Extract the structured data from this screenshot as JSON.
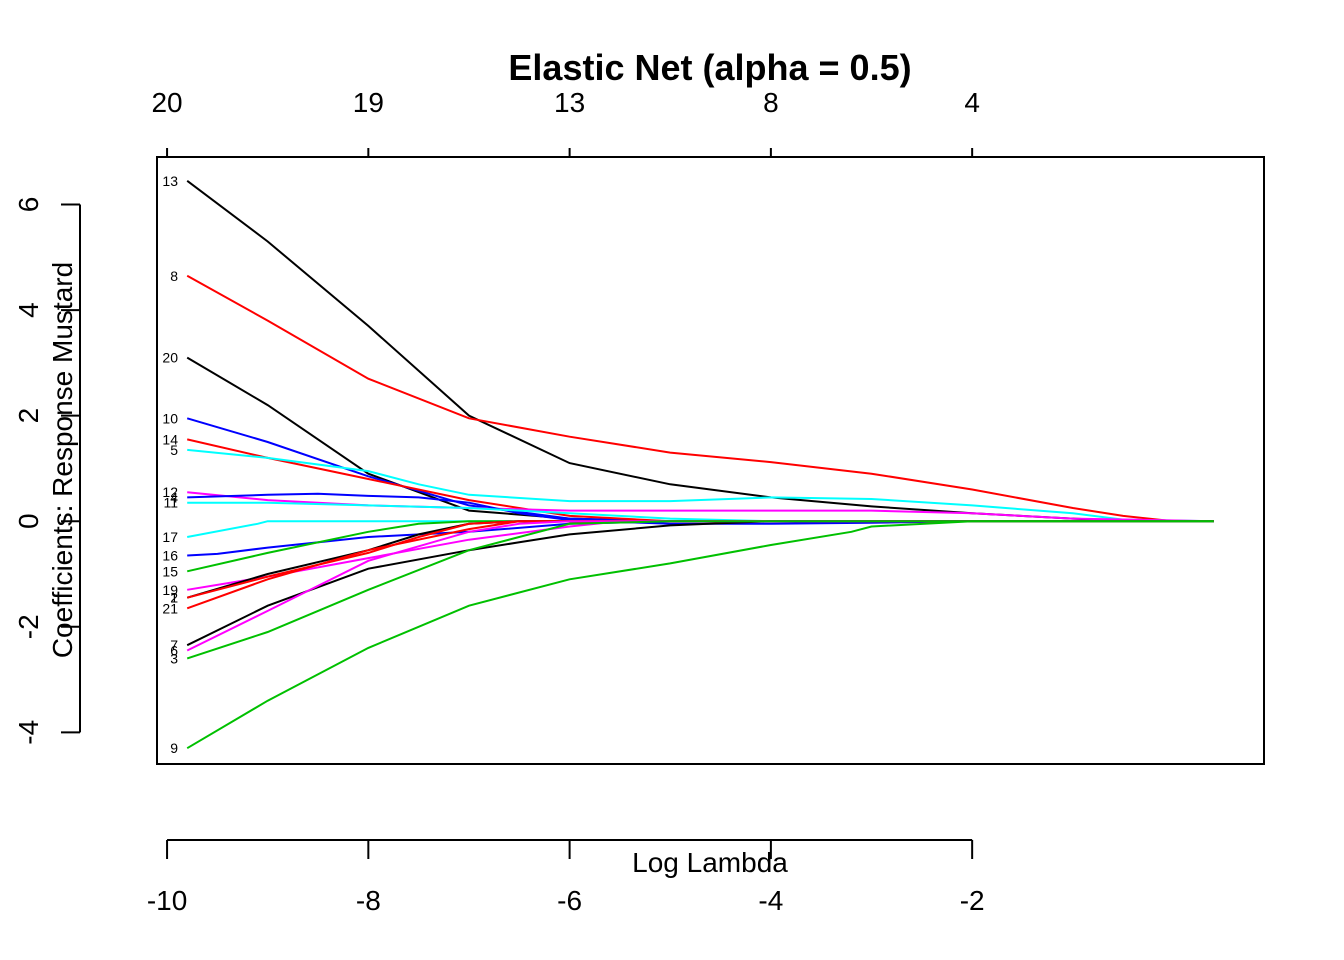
{
  "chart_data": {
    "type": "line",
    "title": "Elastic Net (alpha = 0.5)",
    "xlabel": "Log Lambda",
    "ylabel": "Coefficients: Response Mustard",
    "xlim": [
      -10.1,
      0.9
    ],
    "ylim": [
      -4.6,
      6.9
    ],
    "xticks": [
      -10,
      -8,
      -6,
      -4,
      -2
    ],
    "xtick_labels": [
      "-10",
      "-8",
      "-6",
      "-4",
      "-2"
    ],
    "yticks": [
      -4,
      -2,
      0,
      2,
      4,
      6
    ],
    "ytick_labels": [
      "-4",
      "-2",
      "0",
      "2",
      "4",
      "6"
    ],
    "top_axis_ticks": [
      -10,
      -8,
      -6,
      -4,
      -2
    ],
    "top_axis_labels": [
      "20",
      "19",
      "13",
      "8",
      "4"
    ],
    "grid": false,
    "legend": "none",
    "series": [
      {
        "name": "13",
        "color": "#000000",
        "x": [
          -9.8,
          -9.0,
          -8.0,
          -7.0,
          -6.0,
          -5.0,
          -4.0,
          -3.0,
          -2.0,
          -1.0,
          -0.5,
          0.4
        ],
        "y": [
          6.45,
          5.3,
          3.7,
          2.0,
          1.1,
          0.7,
          0.45,
          0.28,
          0.15,
          0.05,
          0.01,
          0.0
        ]
      },
      {
        "name": "8",
        "color": "#ff0000",
        "x": [
          -9.8,
          -9.0,
          -8.0,
          -7.0,
          -6.0,
          -5.0,
          -4.0,
          -3.0,
          -2.0,
          -1.0,
          -0.5,
          0.0,
          0.4
        ],
        "y": [
          4.65,
          3.8,
          2.7,
          1.95,
          1.6,
          1.3,
          1.12,
          0.9,
          0.6,
          0.25,
          0.1,
          0.0,
          0.0
        ]
      },
      {
        "name": "20",
        "color": "#000000",
        "x": [
          -9.8,
          -9.0,
          -8.0,
          -7.0,
          -6.0,
          -5.0,
          -4.0,
          -3.0,
          -2.0,
          -1.0,
          0.4
        ],
        "y": [
          3.1,
          2.2,
          0.9,
          0.2,
          0.05,
          0.0,
          0.0,
          0.0,
          0.0,
          0.0,
          0.0
        ]
      },
      {
        "name": "10",
        "color": "#0000ff",
        "x": [
          -9.8,
          -9.0,
          -8.0,
          -7.0,
          -6.0,
          -5.0,
          -4.0,
          -3.0,
          -2.0,
          0.4
        ],
        "y": [
          1.95,
          1.5,
          0.85,
          0.3,
          0.05,
          0.0,
          0.0,
          0.0,
          0.0,
          0.0
        ]
      },
      {
        "name": "14",
        "color": "#ff0000",
        "x": [
          -9.8,
          -9.0,
          -8.0,
          -7.0,
          -6.0,
          -5.0,
          -4.0,
          -3.0,
          -2.0,
          0.4
        ],
        "y": [
          1.55,
          1.2,
          0.8,
          0.4,
          0.1,
          0.0,
          0.0,
          0.0,
          0.0,
          0.0
        ]
      },
      {
        "name": "5",
        "color": "#00ffff",
        "x": [
          -9.8,
          -9.0,
          -8.0,
          -7.5,
          -7.0,
          -6.0,
          -5.0,
          -4.0,
          -3.0,
          -2.0,
          -1.0,
          -0.5,
          0.4
        ],
        "y": [
          1.35,
          1.2,
          0.95,
          0.7,
          0.5,
          0.38,
          0.38,
          0.45,
          0.42,
          0.3,
          0.15,
          0.03,
          0.0
        ]
      },
      {
        "name": "12",
        "color": "#ff00ff",
        "x": [
          -9.8,
          -9.0,
          -8.0,
          -7.0,
          -6.0,
          -5.0,
          -4.0,
          -3.0,
          -2.0,
          -1.0,
          0.4
        ],
        "y": [
          0.55,
          0.4,
          0.3,
          0.25,
          0.2,
          0.2,
          0.2,
          0.2,
          0.15,
          0.05,
          0.0
        ]
      },
      {
        "name": "4",
        "color": "#0000ff",
        "x": [
          -9.8,
          -9.0,
          -8.5,
          -8.0,
          -7.5,
          -7.0,
          -6.5,
          -6.0,
          -5.0,
          -4.0,
          -3.0,
          -2.0,
          0.4
        ],
        "y": [
          0.45,
          0.5,
          0.52,
          0.48,
          0.45,
          0.35,
          0.15,
          0.02,
          -0.05,
          -0.05,
          -0.03,
          0.0,
          0.0
        ]
      },
      {
        "name": "11",
        "color": "#00ffff",
        "x": [
          -9.8,
          -9.0,
          -8.0,
          -7.0,
          -6.0,
          -5.0,
          -4.0,
          -3.0,
          -2.0,
          0.4
        ],
        "y": [
          0.35,
          0.35,
          0.3,
          0.25,
          0.15,
          0.05,
          0.0,
          0.0,
          0.0,
          0.0
        ]
      },
      {
        "name": "17",
        "color": "#00ffff",
        "x": [
          -9.8,
          -9.1,
          -9.0,
          -8.0,
          -7.0,
          -6.0,
          -4.0,
          -2.0,
          0.4
        ],
        "y": [
          -0.3,
          -0.05,
          0.0,
          0.0,
          0.0,
          0.0,
          0.0,
          0.0,
          0.0
        ]
      },
      {
        "name": "16",
        "color": "#0000ff",
        "x": [
          -9.8,
          -9.5,
          -9.0,
          -8.0,
          -7.0,
          -6.0,
          -5.0,
          -4.0,
          -3.0,
          -2.0,
          0.4
        ],
        "y": [
          -0.65,
          -0.62,
          -0.5,
          -0.3,
          -0.2,
          -0.05,
          0.0,
          0.0,
          0.0,
          0.0,
          0.0
        ]
      },
      {
        "name": "15",
        "color": "#00c000",
        "x": [
          -9.8,
          -9.0,
          -8.0,
          -7.5,
          -7.0,
          -6.0,
          -5.0,
          -4.0,
          -2.0,
          0.4
        ],
        "y": [
          -0.95,
          -0.6,
          -0.2,
          -0.05,
          0.0,
          0.0,
          0.0,
          0.0,
          0.0,
          0.0
        ]
      },
      {
        "name": "19",
        "color": "#ff00ff",
        "x": [
          -9.8,
          -9.0,
          -8.0,
          -7.0,
          -6.0,
          -5.5,
          -5.0,
          -4.0,
          -2.0,
          0.4
        ],
        "y": [
          -1.3,
          -1.05,
          -0.7,
          -0.35,
          -0.1,
          0.0,
          0.0,
          0.0,
          0.0,
          0.0
        ]
      },
      {
        "name": "2",
        "color": "#000000",
        "x": [
          -9.8,
          -9.0,
          -8.0,
          -7.5,
          -7.0,
          -6.5,
          -6.0,
          -5.0,
          -4.0,
          -2.0,
          0.4
        ],
        "y": [
          -1.45,
          -1.0,
          -0.55,
          -0.25,
          -0.05,
          0.0,
          0.0,
          0.0,
          0.0,
          0.0,
          0.0
        ]
      },
      {
        "name": "1",
        "color": "#ff0000",
        "x": [
          -9.8,
          -9.0,
          -8.0,
          -7.5,
          -7.0,
          -6.5,
          -6.0,
          -5.0,
          -4.0,
          -2.0,
          0.4
        ],
        "y": [
          -1.45,
          -1.05,
          -0.6,
          -0.3,
          -0.05,
          0.0,
          0.0,
          0.0,
          0.0,
          0.0,
          0.0
        ]
      },
      {
        "name": "21",
        "color": "#ff0000",
        "x": [
          -9.8,
          -9.0,
          -8.0,
          -7.0,
          -6.5,
          -6.0,
          -5.0,
          -4.0,
          -2.0,
          0.4
        ],
        "y": [
          -1.65,
          -1.1,
          -0.55,
          -0.15,
          0.0,
          0.0,
          0.0,
          0.0,
          0.0,
          0.0
        ]
      },
      {
        "name": "7",
        "color": "#000000",
        "x": [
          -9.8,
          -9.0,
          -8.0,
          -7.0,
          -6.5,
          -6.0,
          -5.0,
          -4.0,
          -3.0,
          -2.0,
          0.4
        ],
        "y": [
          -2.35,
          -1.6,
          -0.9,
          -0.55,
          -0.4,
          -0.25,
          -0.08,
          0.0,
          0.0,
          0.0,
          0.0
        ]
      },
      {
        "name": "6",
        "color": "#ff00ff",
        "x": [
          -9.8,
          -9.0,
          -8.0,
          -7.0,
          -6.5,
          -6.0,
          -5.0,
          -4.0,
          -2.0,
          0.4
        ],
        "y": [
          -2.45,
          -1.7,
          -0.75,
          -0.2,
          -0.05,
          0.0,
          0.0,
          0.0,
          0.0,
          0.0
        ]
      },
      {
        "name": "3",
        "color": "#00c000",
        "x": [
          -9.8,
          -9.0,
          -8.0,
          -7.0,
          -6.0,
          -5.0,
          -4.0,
          -2.0,
          0.4
        ],
        "y": [
          -2.6,
          -2.1,
          -1.3,
          -0.55,
          -0.05,
          0.0,
          0.0,
          0.0,
          0.0
        ]
      },
      {
        "name": "9",
        "color": "#00c000",
        "x": [
          -9.8,
          -9.0,
          -8.0,
          -7.0,
          -6.0,
          -5.0,
          -4.0,
          -3.2,
          -3.0,
          -2.0,
          0.4
        ],
        "y": [
          -4.3,
          -3.4,
          -2.4,
          -1.6,
          -1.1,
          -0.8,
          -0.45,
          -0.2,
          -0.1,
          0.0,
          0.0
        ]
      }
    ]
  }
}
